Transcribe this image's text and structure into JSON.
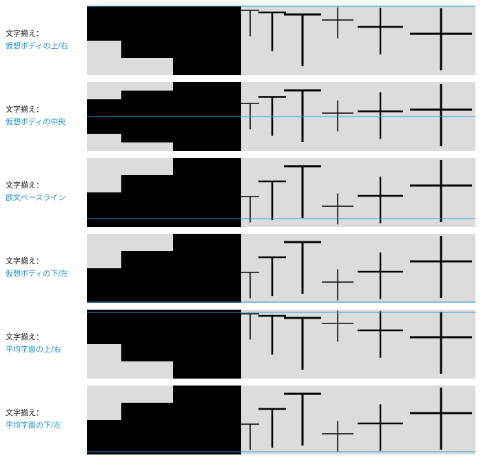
{
  "rows": [
    {
      "label": "文字揃え：",
      "option": "仮想ボディの上/右"
    },
    {
      "label": "文字揃え：",
      "option": "仮想ボディの中央"
    },
    {
      "label": "文字揃え：",
      "option": "欧文ベースライン"
    },
    {
      "label": "文字揃え：",
      "option": "仮想ボディの下/左"
    },
    {
      "label": "文字揃え：",
      "option": "平均字面の上/右"
    },
    {
      "label": "文字揃え：",
      "option": "平均字面の下/左"
    }
  ]
}
